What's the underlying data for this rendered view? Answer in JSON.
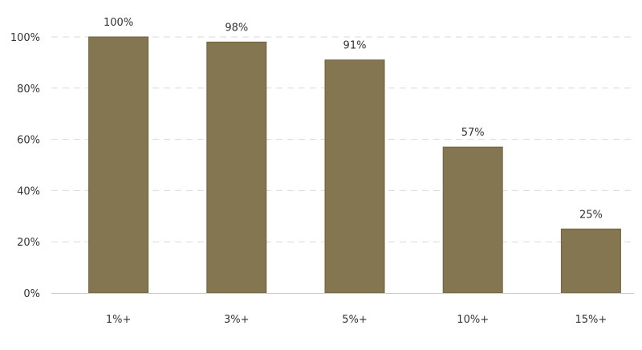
{
  "chart_data": {
    "type": "bar",
    "categories": [
      "1%+",
      "3%+",
      "5%+",
      "10%+",
      "15%+"
    ],
    "values": [
      100,
      98,
      91,
      57,
      25
    ],
    "data_labels": [
      "100%",
      "98%",
      "91%",
      "57%",
      "25%"
    ],
    "title": "",
    "xlabel": "",
    "ylabel": "",
    "ylim": [
      0,
      100
    ],
    "yticks": [
      0,
      20,
      40,
      60,
      80,
      100
    ],
    "ytick_labels": [
      "0%",
      "20%",
      "40%",
      "60%",
      "80%",
      "100%"
    ],
    "grid": "horizontal dashed",
    "legend": "none",
    "colors": {
      "bar": "#837650",
      "bar_border": "#6e6340",
      "grid": "#d9d9d9",
      "axis": "#cccccc"
    }
  }
}
